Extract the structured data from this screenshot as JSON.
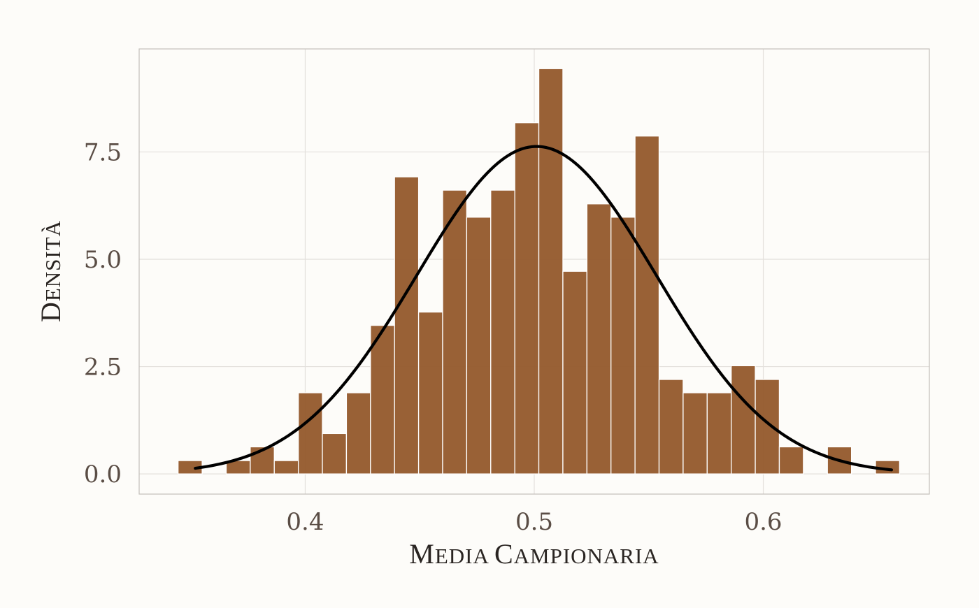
{
  "chart_data": {
    "type": "bar",
    "subtype": "histogram-with-density-curve",
    "xlabel": "Media Campionaria",
    "ylabel": "Densità",
    "xlim": [
      0.3275,
      0.6725
    ],
    "ylim": [
      -0.47,
      9.9
    ],
    "x_ticks": [
      {
        "value": 0.4,
        "label": "0.4"
      },
      {
        "value": 0.5,
        "label": "0.5"
      },
      {
        "value": 0.6,
        "label": "0.6"
      }
    ],
    "y_ticks": [
      {
        "value": 0.0,
        "label": "0.0"
      },
      {
        "value": 2.5,
        "label": "2.5"
      },
      {
        "value": 5.0,
        "label": "5.0"
      },
      {
        "value": 7.5,
        "label": "7.5"
      }
    ],
    "bin_width": 0.0105,
    "bins": [
      {
        "x_start": 0.3445,
        "x_end": 0.355,
        "density": 0.31
      },
      {
        "x_start": 0.355,
        "x_end": 0.3655,
        "density": 0.0
      },
      {
        "x_start": 0.3655,
        "x_end": 0.376,
        "density": 0.31
      },
      {
        "x_start": 0.376,
        "x_end": 0.3865,
        "density": 0.63
      },
      {
        "x_start": 0.3865,
        "x_end": 0.397,
        "density": 0.31
      },
      {
        "x_start": 0.397,
        "x_end": 0.4075,
        "density": 1.89
      },
      {
        "x_start": 0.4075,
        "x_end": 0.418,
        "density": 0.94
      },
      {
        "x_start": 0.418,
        "x_end": 0.4285,
        "density": 1.89
      },
      {
        "x_start": 0.4285,
        "x_end": 0.439,
        "density": 3.46
      },
      {
        "x_start": 0.439,
        "x_end": 0.4495,
        "density": 6.92
      },
      {
        "x_start": 0.4495,
        "x_end": 0.46,
        "density": 3.77
      },
      {
        "x_start": 0.46,
        "x_end": 0.4705,
        "density": 6.61
      },
      {
        "x_start": 0.4705,
        "x_end": 0.481,
        "density": 5.98
      },
      {
        "x_start": 0.481,
        "x_end": 0.4915,
        "density": 6.61
      },
      {
        "x_start": 0.4915,
        "x_end": 0.502,
        "density": 8.18
      },
      {
        "x_start": 0.502,
        "x_end": 0.5125,
        "density": 9.44
      },
      {
        "x_start": 0.5125,
        "x_end": 0.523,
        "density": 4.72
      },
      {
        "x_start": 0.523,
        "x_end": 0.5335,
        "density": 6.29
      },
      {
        "x_start": 0.5335,
        "x_end": 0.544,
        "density": 5.98
      },
      {
        "x_start": 0.544,
        "x_end": 0.5545,
        "density": 7.87
      },
      {
        "x_start": 0.5545,
        "x_end": 0.565,
        "density": 2.2
      },
      {
        "x_start": 0.565,
        "x_end": 0.5755,
        "density": 1.89
      },
      {
        "x_start": 0.5755,
        "x_end": 0.586,
        "density": 1.89
      },
      {
        "x_start": 0.586,
        "x_end": 0.5965,
        "density": 2.52
      },
      {
        "x_start": 0.5965,
        "x_end": 0.607,
        "density": 2.2
      },
      {
        "x_start": 0.607,
        "x_end": 0.6175,
        "density": 0.63
      },
      {
        "x_start": 0.6175,
        "x_end": 0.628,
        "density": 0.0
      },
      {
        "x_start": 0.628,
        "x_end": 0.6385,
        "density": 0.63
      },
      {
        "x_start": 0.6385,
        "x_end": 0.649,
        "density": 0.0
      },
      {
        "x_start": 0.649,
        "x_end": 0.6595,
        "density": 0.31
      }
    ],
    "density_curve": {
      "distribution": "normal",
      "mean": 0.501,
      "sd": 0.0523,
      "x_range": [
        0.352,
        0.656
      ]
    },
    "grid": true,
    "legend": "none",
    "colors": {
      "bar_fill": "#94582b",
      "bar_outline": "#ffffff",
      "curve": "#000000",
      "background": "#fdfcf9",
      "panel_border": "#c4bfba",
      "grid": "#e3e0dc",
      "tick_text": "#5a4d45",
      "title_text": "#2a2522"
    }
  }
}
